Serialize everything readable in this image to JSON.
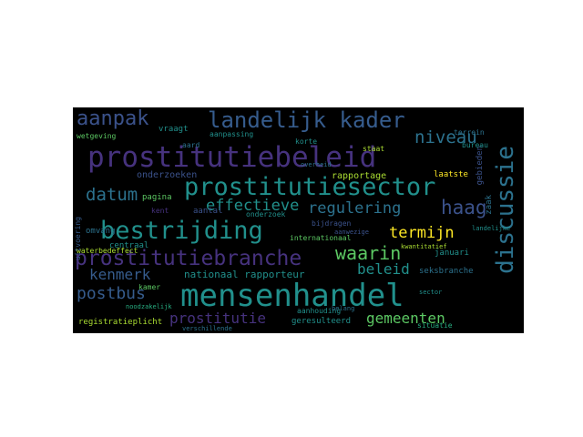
{
  "words": {
    "mensenhandel": "mensenhandel",
    "prostitutiebeleid": "prostitutiebeleid",
    "prostitutiesector": "prostitutiesector",
    "bestrijding": "bestrijding",
    "landelijk_kader": "landelijk kader",
    "prostitutiebranche": "prostitutiebranche",
    "discussie": "discussie",
    "aanpak": "aanpak",
    "niveau": "niveau",
    "datum": "datum",
    "effectieve": "effectieve",
    "regulering": "regulering",
    "haag": "haag",
    "waarin": "waarin",
    "termijn": "termijn",
    "beleid": "beleid",
    "kenmerk": "kenmerk",
    "postbus": "postbus",
    "prostitutie": "prostitutie",
    "gemeenten": "gemeenten",
    "nationaal_rapporteur": "nationaal rapporteur",
    "rapportage": "rapportage",
    "onderzoeken": "onderzoeken",
    "aantal": "aantal",
    "pagina": "pagina",
    "centraal": "centraal",
    "omvang": "omvang",
    "kamer": "kamer",
    "registratieplicht": "registratieplicht",
    "verschillende": "verschillende",
    "geresulteerd": "geresulteerd",
    "aanhouding": "aanhouding",
    "situatie": "situatie",
    "seksbranche": "seksbranche",
    "januari": "januari",
    "internationaal": "internationaal",
    "kwantitatief": "kwantitatief",
    "bijdragen": "bijdragen",
    "aanwezige": "aanwezige",
    "laatste": "laatste",
    "gebieden": "gebieden",
    "zaak": "zaak",
    "staat": "staat",
    "terrein": "terrein",
    "bureau": "bureau",
    "korte": "korte",
    "aanpassing": "aanpassing",
    "vraagt": "vraagt",
    "wetgeving": "wetgeving",
    "uitvoering": "uitvoering",
    "belang": "belang",
    "noodzakelijk": "noodzakelijk",
    "waterbedeffect": "waterbedeffect",
    "kent": "kent",
    "onderzoek": "onderzoek",
    "landelijke": "landelijke",
    "overheid": "overheid",
    "sector": "sector",
    "aard": "aard"
  },
  "colors": {
    "purple": "#46327e",
    "indigo": "#3b528b",
    "blue": "#365c8d",
    "steel": "#2c728e",
    "teal": "#21908c",
    "sea": "#27ad81",
    "green": "#5cc863",
    "lime": "#aadc32",
    "yellow": "#fde725"
  }
}
